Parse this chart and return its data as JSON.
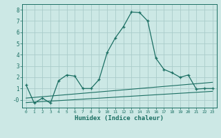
{
  "xlabel": "Humidex (Indice chaleur)",
  "xlim": [
    -0.5,
    23.5
  ],
  "ylim": [
    -0.7,
    8.5
  ],
  "bg_color": "#cce8e5",
  "grid_color": "#aaccca",
  "line_color": "#1a6e62",
  "line1_x": [
    0,
    1,
    2,
    3,
    4,
    5,
    6,
    7,
    8,
    9,
    10,
    11,
    12,
    13,
    14,
    15,
    16,
    17,
    18,
    19,
    20,
    21,
    22,
    23
  ],
  "line1_y": [
    1.3,
    -0.3,
    0.15,
    -0.3,
    1.7,
    2.2,
    2.1,
    1.0,
    1.0,
    1.8,
    4.2,
    5.5,
    6.5,
    7.8,
    7.75,
    7.0,
    3.7,
    2.7,
    2.4,
    2.0,
    2.2,
    0.95,
    1.0,
    1.0
  ],
  "line2_x": [
    0,
    23
  ],
  "line2_y": [
    0.15,
    1.55
  ],
  "line3_x": [
    0,
    23
  ],
  "line3_y": [
    -0.25,
    0.75
  ],
  "ytick_labels": [
    "8",
    "7",
    "6",
    "5",
    "4",
    "3",
    "2",
    "1",
    "-0"
  ],
  "ytick_vals": [
    8,
    7,
    6,
    5,
    4,
    3,
    2,
    1,
    0
  ],
  "xticks": [
    0,
    1,
    2,
    3,
    4,
    5,
    6,
    7,
    8,
    9,
    10,
    11,
    12,
    13,
    14,
    15,
    16,
    17,
    18,
    19,
    20,
    21,
    22,
    23
  ]
}
